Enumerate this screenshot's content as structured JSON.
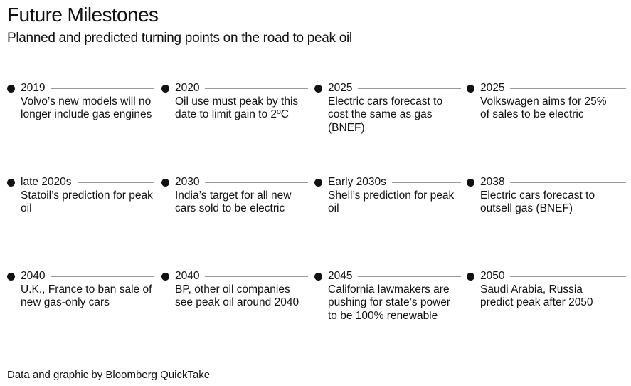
{
  "header": {
    "title": "Future Milestones",
    "subtitle": "Planned and predicted turning points on the road to peak oil"
  },
  "milestones": [
    {
      "year": "2019",
      "text": "Volvo’s new models will no longer include gas engines"
    },
    {
      "year": "2020",
      "text": "Oil use must peak by this date to limit gain to 2ºC"
    },
    {
      "year": "2025",
      "text": "Electric cars forecast to cost the same as gas (BNEF)"
    },
    {
      "year": "2025",
      "text": "Volkswagen aims for 25% of sales to be electric"
    },
    {
      "year": "late 2020s",
      "text": "Statoil’s prediction for peak oil"
    },
    {
      "year": "2030",
      "text": "India’s target for all new cars sold to be electric"
    },
    {
      "year": "Early 2030s",
      "text": "Shell’s prediction for peak oil"
    },
    {
      "year": "2038",
      "text": "Electric cars forecast to outsell gas (BNEF)"
    },
    {
      "year": "2040",
      "text": "U.K., France to ban sale of new gas-only cars"
    },
    {
      "year": "2040",
      "text": "BP, other oil companies see peak oil around 2040"
    },
    {
      "year": "2045",
      "text": "California lawmakers are pushing for state’s power to be 100% renewable"
    },
    {
      "year": "2050",
      "text": "Saudi Arabia, Russia predict peak after 2050"
    }
  ],
  "footer": {
    "credit": "Data and graphic by Bloomberg QuickTake"
  },
  "colors": {
    "text": "#111111",
    "rule": "#9a9a9a",
    "background": "#ffffff"
  }
}
